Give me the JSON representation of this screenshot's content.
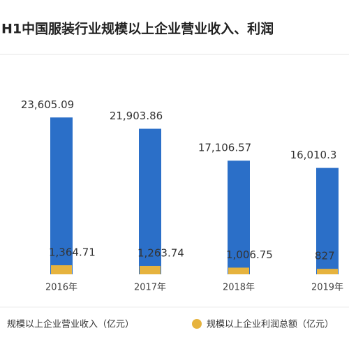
{
  "chart_data": {
    "type": "bar",
    "title": "H1中国服装行业规模以上企业营业收入、利润",
    "categories": [
      "2016年",
      "2017年",
      "2018年",
      "2019年"
    ],
    "series": [
      {
        "name": "规模以上企业营业收入（亿元）",
        "color": "#2b6fc8",
        "values": [
          23605.09,
          21903.86,
          17106.57,
          16010.3
        ],
        "value_labels": [
          "23,605.09",
          "21,903.86",
          "17,106.57",
          "16,010.3"
        ]
      },
      {
        "name": "规模以上企业利润总额（亿元）",
        "color": "#e6b33e",
        "values": [
          1364.71,
          1263.74,
          1006.75,
          827
        ],
        "value_labels": [
          "1,364.71",
          "1,263.74",
          "1,006.75",
          "827"
        ]
      }
    ],
    "ylim": [
      0,
      25000
    ]
  }
}
